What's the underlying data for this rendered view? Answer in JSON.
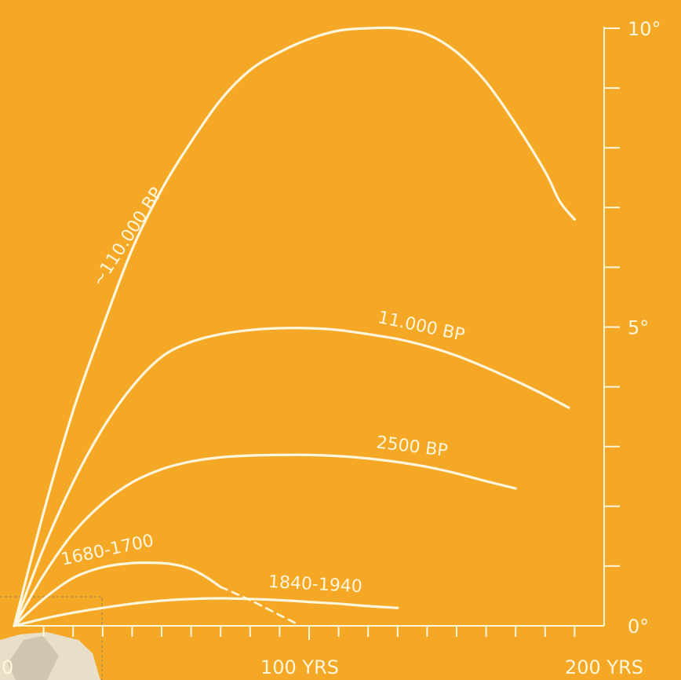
{
  "chart_data": {
    "type": "line",
    "xlabel": "",
    "ylabel": "",
    "xlim": [
      0,
      200
    ],
    "ylim": [
      0,
      10
    ],
    "x_ticks": [
      {
        "value": 0,
        "label": "0"
      },
      {
        "value": 100,
        "label": "100 YRS"
      },
      {
        "value": 200,
        "label": "200 YRS"
      }
    ],
    "y_ticks": [
      {
        "value": 0,
        "label": "0°"
      },
      {
        "value": 5,
        "label": "5°"
      },
      {
        "value": 10,
        "label": "10°"
      }
    ],
    "x_minor_step": 10,
    "y_minor_step": 1,
    "grid": false,
    "series": [
      {
        "name": "~110.000 BP",
        "x": [
          0,
          10,
          20,
          30,
          40,
          50,
          60,
          70,
          80,
          90,
          100,
          110,
          120,
          130,
          140,
          150,
          160,
          170,
          180,
          185,
          190
        ],
        "y": [
          0,
          1.9,
          3.6,
          5.0,
          6.3,
          7.3,
          8.1,
          8.8,
          9.3,
          9.6,
          9.82,
          9.96,
          10.0,
          10.0,
          9.9,
          9.6,
          9.1,
          8.4,
          7.6,
          7.1,
          6.8
        ]
      },
      {
        "name": "11.000 BP",
        "x": [
          0,
          10,
          20,
          30,
          40,
          50,
          60,
          70,
          80,
          90,
          100,
          110,
          120,
          130,
          140,
          150,
          160,
          170,
          180,
          188
        ],
        "y": [
          0,
          1.3,
          2.4,
          3.3,
          4.0,
          4.5,
          4.75,
          4.88,
          4.95,
          4.98,
          4.98,
          4.95,
          4.88,
          4.8,
          4.68,
          4.52,
          4.32,
          4.1,
          3.86,
          3.65
        ]
      },
      {
        "name": "2500 BP",
        "x": [
          0,
          10,
          20,
          30,
          40,
          50,
          60,
          70,
          80,
          90,
          100,
          110,
          120,
          130,
          140,
          150,
          160,
          170
        ],
        "y": [
          0,
          0.85,
          1.55,
          2.05,
          2.4,
          2.62,
          2.75,
          2.82,
          2.85,
          2.86,
          2.86,
          2.84,
          2.8,
          2.74,
          2.66,
          2.55,
          2.42,
          2.3
        ]
      },
      {
        "name": "1680-1700",
        "x": [
          0,
          10,
          20,
          30,
          40,
          50,
          55,
          60,
          65,
          70
        ],
        "y": [
          0,
          0.45,
          0.8,
          0.98,
          1.05,
          1.05,
          1.02,
          0.95,
          0.82,
          0.65
        ]
      },
      {
        "name": "",
        "style": "dashed",
        "x": [
          70,
          80,
          90,
          96
        ],
        "y": [
          0.65,
          0.43,
          0.18,
          0.03
        ]
      },
      {
        "name": "1840-1940",
        "x": [
          0,
          10,
          20,
          30,
          40,
          50,
          60,
          70,
          80,
          90,
          100,
          110,
          120,
          130
        ],
        "y": [
          0,
          0.12,
          0.22,
          0.3,
          0.37,
          0.42,
          0.45,
          0.46,
          0.45,
          0.43,
          0.4,
          0.37,
          0.33,
          0.3
        ]
      }
    ]
  }
}
